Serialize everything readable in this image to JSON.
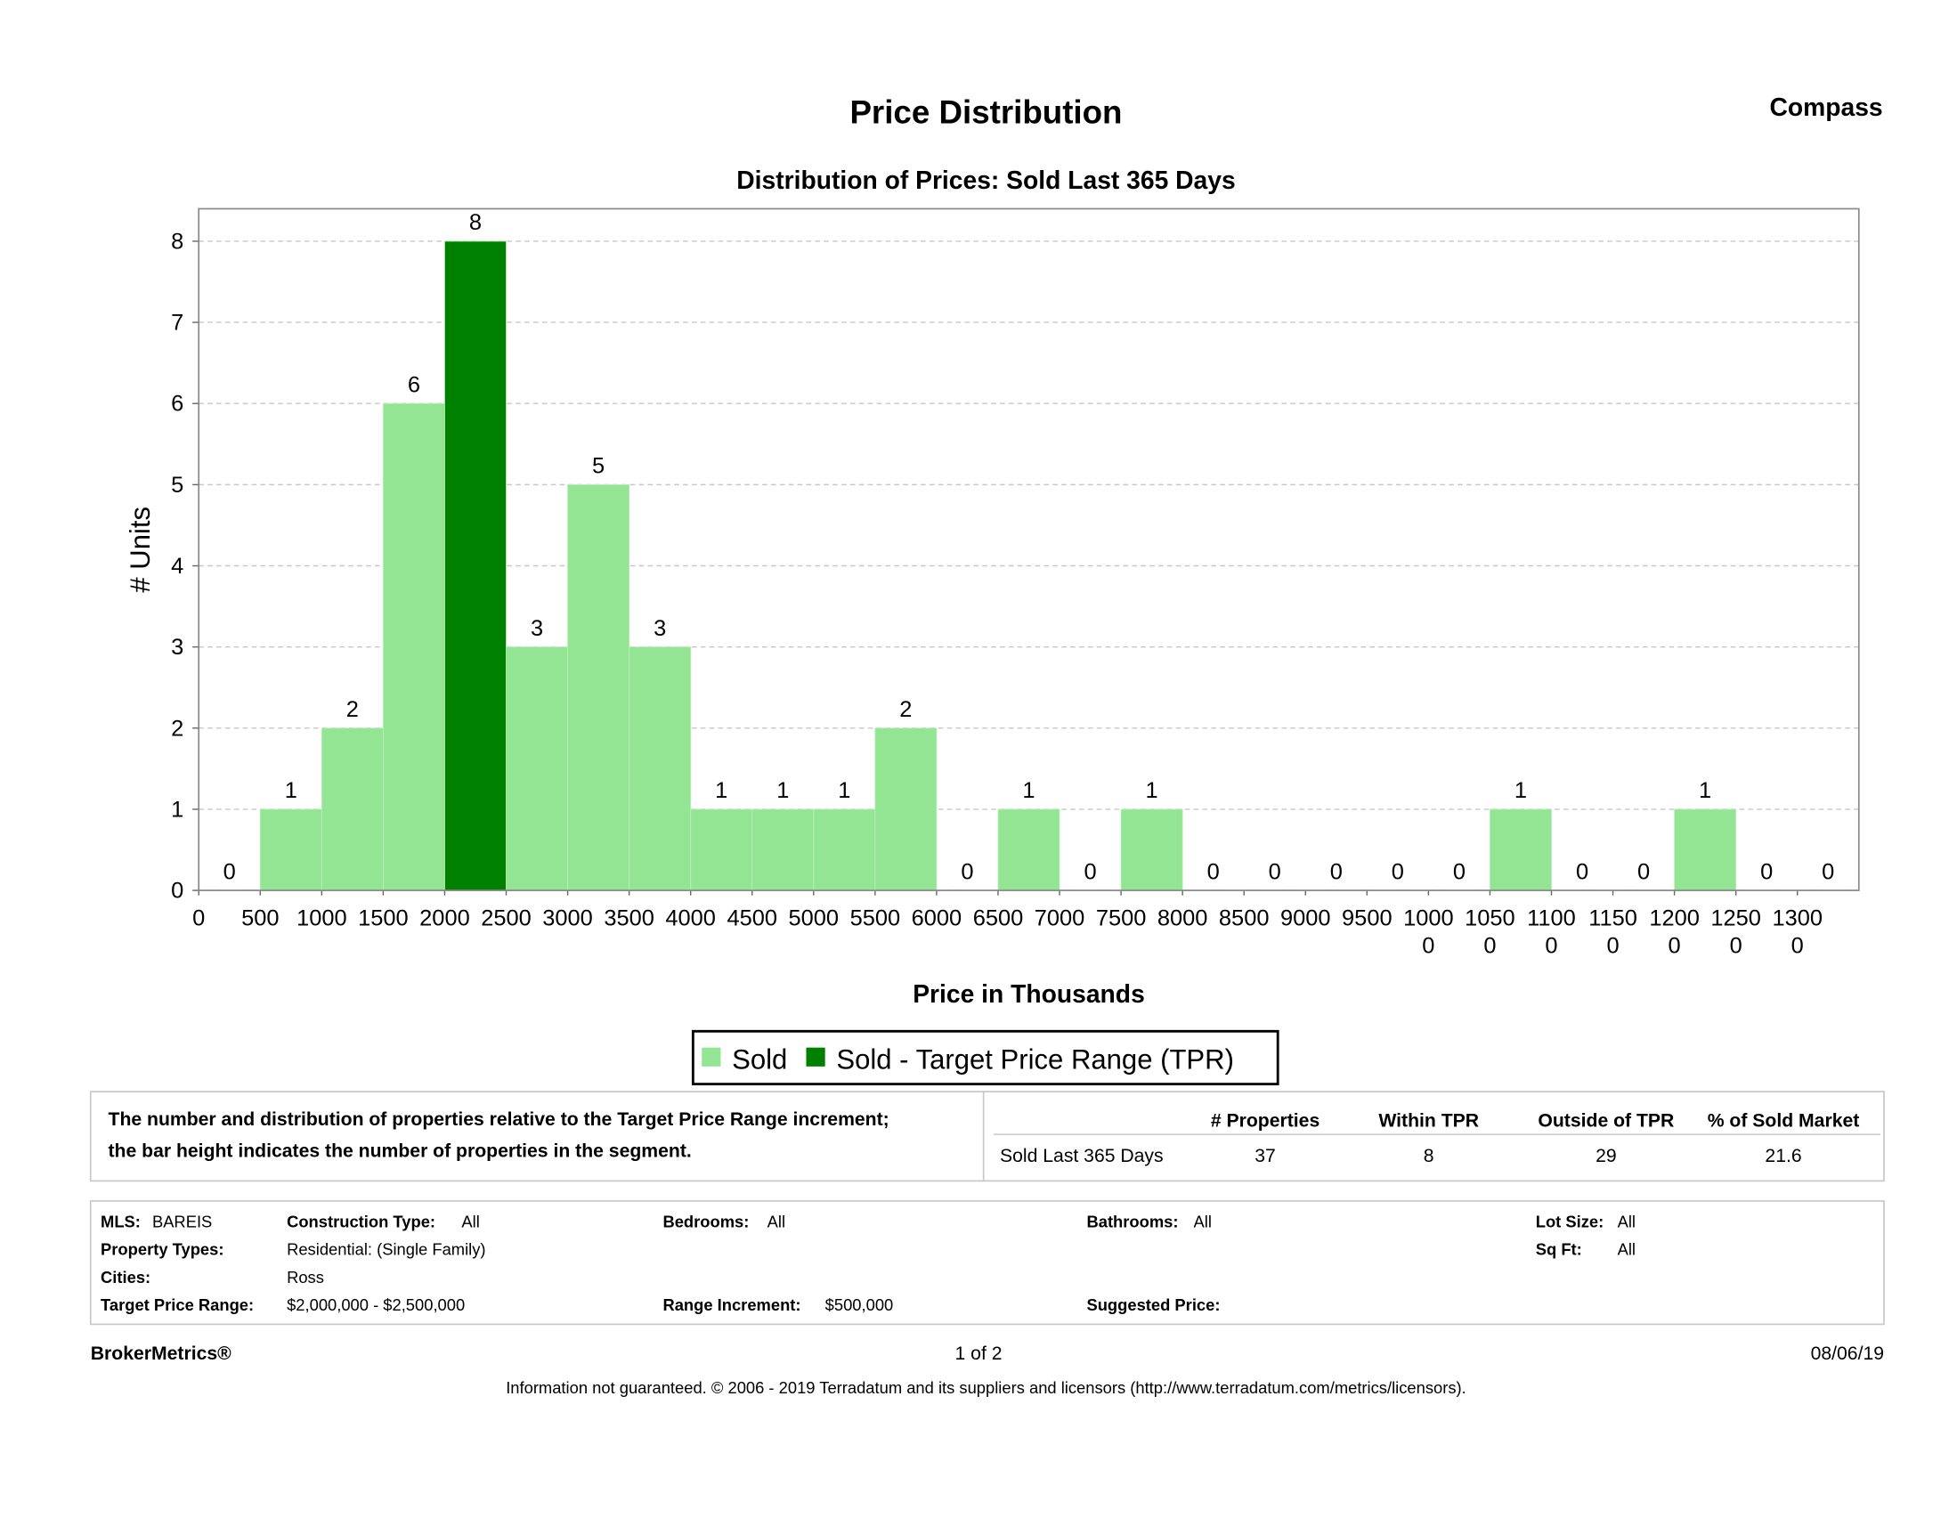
{
  "header": {
    "title": "Price Distribution",
    "brand": "Compass"
  },
  "chart_data": {
    "type": "histogram",
    "title": "Distribution of Prices: Sold Last 365 Days",
    "xlabel": "Price in Thousands",
    "ylabel": "# Units",
    "bins": [
      0,
      500,
      1000,
      1500,
      2000,
      2500,
      3000,
      3500,
      4000,
      4500,
      5000,
      5500,
      6000,
      6500,
      7000,
      7500,
      8000,
      8500,
      9000,
      9500,
      10000,
      10500,
      11000,
      11500,
      12000,
      12500,
      13000,
      13500
    ],
    "series": [
      {
        "name": "Sold",
        "color": "#93e593",
        "values": [
          0,
          1,
          2,
          6,
          null,
          3,
          5,
          3,
          1,
          1,
          1,
          2,
          0,
          1,
          0,
          1,
          0,
          0,
          0,
          0,
          0,
          1,
          0,
          0,
          1,
          0,
          0
        ]
      },
      {
        "name": "Sold - Target Price Range (TPR)",
        "color": "#008000",
        "values": [
          null,
          null,
          null,
          null,
          8,
          null,
          null,
          null,
          null,
          null,
          null,
          null,
          null,
          null,
          null,
          null,
          null,
          null,
          null,
          null,
          null,
          null,
          null,
          null,
          null,
          null,
          null
        ]
      }
    ],
    "xlim": [
      0,
      13500
    ],
    "ylim": [
      0,
      8.4
    ],
    "xticks": [
      0,
      500,
      1000,
      1500,
      2000,
      2500,
      3000,
      3500,
      4000,
      4500,
      5000,
      5500,
      6000,
      6500,
      7000,
      7500,
      8000,
      8500,
      9000,
      9500,
      10000,
      10500,
      11000,
      11500,
      12000,
      12500,
      13000
    ],
    "yticks": [
      0,
      1,
      2,
      3,
      4,
      5,
      6,
      7,
      8
    ],
    "grid": true
  },
  "summary": {
    "description": [
      "The number and distribution of properties relative to the Target Price Range increment;",
      "the bar height indicates the number of properties in the segment."
    ],
    "headers": [
      "# Properties",
      "Within TPR",
      "Outside of TPR",
      "% of Sold Market"
    ],
    "rows": [
      [
        "Sold Last 365 Days",
        37,
        8,
        29,
        21.6
      ]
    ]
  },
  "criteria": {
    "mls": {
      "label": "MLS:",
      "value": "BAREIS"
    },
    "construction_type": {
      "label": "Construction Type:",
      "value": "All"
    },
    "bedrooms": {
      "label": "Bedrooms:",
      "value": "All"
    },
    "bathrooms": {
      "label": "Bathrooms:",
      "value": "All"
    },
    "lot_size": {
      "label": "Lot Size:",
      "value": "All"
    },
    "property_types": {
      "label": "Property Types:",
      "value": "Residential: (Single Family)"
    },
    "sq_ft": {
      "label": "Sq Ft:",
      "value": "All"
    },
    "cities": {
      "label": "Cities:",
      "value": "Ross"
    },
    "target_price_range": {
      "label": "Target Price Range:",
      "value": "$2,000,000 - $2,500,000"
    },
    "range_increment": {
      "label": "Range Increment:",
      "value": "$500,000"
    },
    "suggested_price": {
      "label": "Suggested Price:"
    }
  },
  "footer": {
    "brand": "BrokerMetrics®",
    "page": "1 of 2",
    "date": "08/06/19",
    "disclaimer": "Information not guaranteed.  © 2006 - 2019 Terradatum and its suppliers and licensors (http://www.terradatum.com/metrics/licensors)."
  }
}
